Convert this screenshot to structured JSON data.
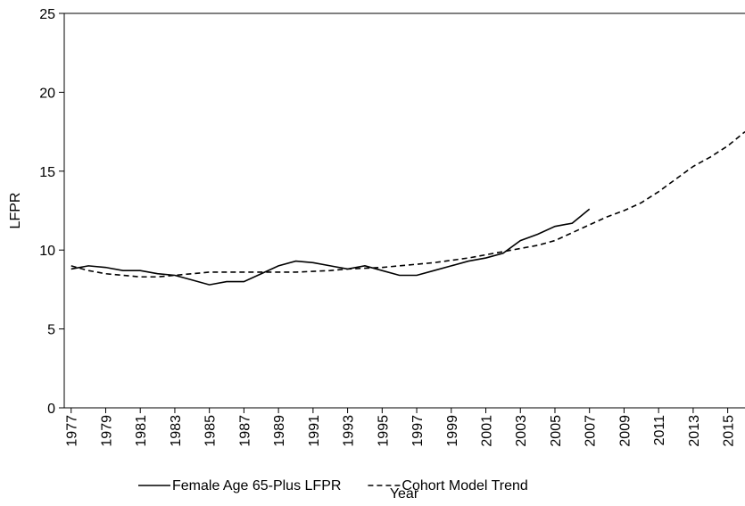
{
  "chart_data": {
    "type": "line",
    "x_label": "Year",
    "y_label": "LFPR",
    "x": [
      1977,
      1978,
      1979,
      1980,
      1981,
      1982,
      1983,
      1984,
      1985,
      1986,
      1987,
      1988,
      1989,
      1990,
      1991,
      1992,
      1993,
      1994,
      1995,
      1996,
      1997,
      1998,
      1999,
      2000,
      2001,
      2002,
      2003,
      2004,
      2005,
      2006,
      2007,
      2008,
      2009,
      2010,
      2011,
      2012,
      2013,
      2014,
      2015,
      2016
    ],
    "series": [
      {
        "name": "Female Age 65-Plus LFPR",
        "color": "#000000",
        "dash": "solid",
        "values": [
          8.8,
          9.0,
          8.9,
          8.7,
          8.7,
          8.5,
          8.4,
          8.1,
          7.8,
          8.0,
          8.0,
          8.5,
          9.0,
          9.3,
          9.2,
          9.0,
          8.8,
          9.0,
          8.7,
          8.4,
          8.4,
          8.7,
          9.0,
          9.3,
          9.5,
          9.8,
          10.6,
          11.0,
          11.5,
          11.7,
          12.6,
          null,
          null,
          null,
          null,
          null,
          null,
          null,
          null,
          null
        ]
      },
      {
        "name": "Cohort Model Trend",
        "color": "#000000",
        "dash": "dashed",
        "values": [
          9.0,
          8.7,
          8.5,
          8.4,
          8.3,
          8.3,
          8.4,
          8.5,
          8.6,
          8.6,
          8.6,
          8.6,
          8.6,
          8.6,
          8.65,
          8.7,
          8.8,
          8.85,
          8.9,
          9.0,
          9.1,
          9.2,
          9.35,
          9.5,
          9.7,
          9.9,
          10.1,
          10.3,
          10.6,
          11.1,
          11.6,
          12.1,
          12.5,
          13.0,
          13.7,
          14.5,
          15.3,
          15.9,
          16.6,
          17.5
        ]
      }
    ],
    "xlim": [
      1976.6,
      2016
    ],
    "xticks": [
      1977,
      1979,
      1981,
      1983,
      1985,
      1987,
      1989,
      1991,
      1993,
      1995,
      1997,
      1999,
      2001,
      2003,
      2005,
      2007,
      2009,
      2011,
      2013,
      2015
    ],
    "ylim": [
      0,
      25
    ],
    "yticks": [
      0,
      5,
      10,
      15,
      20,
      25
    ],
    "grid": false,
    "legend": "bottom"
  }
}
